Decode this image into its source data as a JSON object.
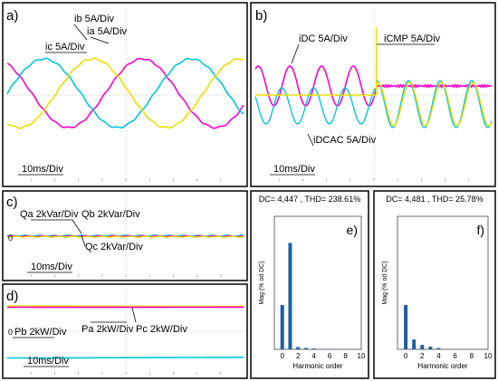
{
  "colors": {
    "magenta": "#ff00cc",
    "cyan": "#00c8d8",
    "yellow": "#e8e000",
    "green": "#7fd040",
    "bar": "#1f5fa0"
  },
  "panels": {
    "a": {
      "tag": "a)",
      "labels": [
        "ic 5A/Div",
        "ib 5A/Div",
        "ia 5A/Div"
      ],
      "timebase": "10ms/Div"
    },
    "b": {
      "tag": "b)",
      "labels": [
        "iDC 5A/Div",
        "iCMP 5A/Div",
        "iDCAC 5A/Div"
      ],
      "timebase": "10ms/Div"
    },
    "c": {
      "tag": "c)",
      "labels": [
        "Qa 2kVar/Div",
        "Qb 2kVar/Div",
        "Qc 2kVar/Div"
      ],
      "zero": "0",
      "timebase": "10ms/Div"
    },
    "d": {
      "tag": "d)",
      "labels": [
        "Pa 2kW/Div",
        "Pc 2kW/Div",
        "Pb 2kW/Div"
      ],
      "zero": "0",
      "timebase": "10ms/Div"
    }
  },
  "chart_data": [
    {
      "type": "line",
      "panel": "a",
      "series": [
        {
          "name": "ic",
          "amplitude_div": 1.6,
          "period_div": 2,
          "phase_deg": 120
        },
        {
          "name": "ib",
          "amplitude_div": 1.6,
          "period_div": 2,
          "phase_deg": 0
        },
        {
          "name": "ia",
          "amplitude_div": 1.6,
          "period_div": 2,
          "phase_deg": -120
        }
      ]
    },
    {
      "type": "line",
      "panel": "b",
      "series": [
        {
          "name": "iDC",
          "amplitude_div": 0.7,
          "period_div": 1,
          "before_step": "sinusoidal",
          "after_step": "flat"
        },
        {
          "name": "iCMP",
          "before_step": 0,
          "after_step": "sinusoidal"
        },
        {
          "name": "iDCAC",
          "amplitude_div": 1.0,
          "period_div": 1
        }
      ]
    },
    {
      "type": "bar",
      "panel": "e",
      "title": "DC= 4,447 , THD= 238.61%",
      "tag": "e)",
      "xlabel": "Harmonic order",
      "ylabel": "Mag (% od DC)",
      "categories": [
        0,
        1,
        2,
        3,
        4,
        5,
        6
      ],
      "values": [
        100,
        240,
        5,
        3,
        2,
        1,
        1
      ],
      "xlim": [
        -1,
        10
      ],
      "ylim": [
        0,
        300
      ],
      "xticks": [
        "0",
        "2",
        "4",
        "6",
        "8",
        "10"
      ]
    },
    {
      "type": "bar",
      "panel": "f",
      "title": "DC= 4,481 , THD= 25.78%",
      "tag": "f)",
      "xlabel": "Harmonic order",
      "ylabel": "Mag (% od DC)",
      "categories": [
        0,
        1,
        2,
        3,
        4
      ],
      "values": [
        100,
        22,
        10,
        6,
        3
      ],
      "xlim": [
        -1,
        10
      ],
      "ylim": [
        0,
        300
      ],
      "xticks": [
        "0",
        "2",
        "4",
        "6",
        "8",
        "10"
      ]
    }
  ]
}
